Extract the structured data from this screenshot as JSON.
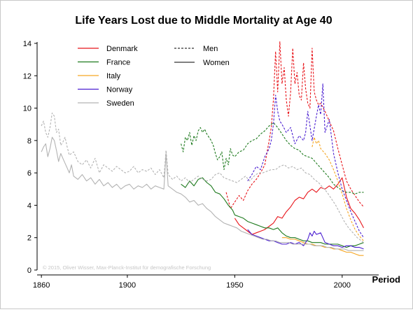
{
  "chart_data": {
    "type": "line",
    "title": "Life Years Lost due to Middle Mortality at Age 40",
    "xlabel": "Period",
    "ylabel": "",
    "xlim": [
      1858,
      2017
    ],
    "ylim": [
      0,
      14
    ],
    "xticks": [
      1860,
      1900,
      1950,
      2000
    ],
    "yticks": [
      0,
      2,
      4,
      6,
      8,
      10,
      12,
      14
    ],
    "grid": false,
    "legend": "top-left",
    "legend_entries": [
      "Denmark",
      "France",
      "Italy",
      "Norway",
      "Sweden"
    ],
    "linestyle_legend": [
      {
        "label": "Men",
        "style": "dashed"
      },
      {
        "label": "Women",
        "style": "solid"
      }
    ],
    "credit": "© 2015, Oliver Wisser, Max-Planck-Institut für demografische Forschung",
    "series": [
      {
        "name": "Denmark",
        "sex": "Men",
        "color": "#e8151b",
        "x": [
          1946,
          1948,
          1950,
          1952,
          1954,
          1956,
          1958,
          1960,
          1962,
          1964,
          1966,
          1967,
          1968,
          1969,
          1970,
          1971,
          1972,
          1973,
          1974,
          1975,
          1976,
          1977,
          1978,
          1979,
          1980,
          1981,
          1982,
          1983,
          1984,
          1985,
          1986,
          1987,
          1988,
          1989,
          1990,
          1992,
          1994,
          1996,
          1998,
          2000,
          2002,
          2004,
          2006,
          2008,
          2010
        ],
        "y": [
          4.8,
          3.8,
          4.2,
          4.6,
          4.3,
          4.9,
          5.3,
          5.6,
          6.0,
          6.5,
          8.0,
          8.8,
          10.5,
          13.5,
          11.0,
          14.1,
          11.5,
          12.5,
          10.5,
          9.5,
          11.0,
          13.7,
          11.5,
          12.2,
          10.8,
          10.5,
          12.8,
          11.2,
          10.3,
          10.0,
          13.7,
          11.0,
          10.5,
          10.2,
          10.3,
          9.8,
          9.2,
          8.6,
          7.5,
          6.5,
          5.5,
          5.0,
          4.6,
          4.2,
          3.9
        ]
      },
      {
        "name": "Denmark",
        "sex": "Women",
        "color": "#e8151b",
        "x": [
          1950,
          1952,
          1954,
          1956,
          1958,
          1960,
          1962,
          1964,
          1966,
          1968,
          1970,
          1972,
          1974,
          1976,
          1978,
          1980,
          1982,
          1984,
          1986,
          1988,
          1990,
          1992,
          1994,
          1996,
          1998,
          2000,
          2002,
          2004,
          2006,
          2008,
          2010
        ],
        "y": [
          3.2,
          2.8,
          2.6,
          2.4,
          2.2,
          2.3,
          2.4,
          2.5,
          2.7,
          2.9,
          3.3,
          3.2,
          3.6,
          3.9,
          4.3,
          4.5,
          4.4,
          4.8,
          5.0,
          4.8,
          5.1,
          5.0,
          5.2,
          5.0,
          5.3,
          5.7,
          4.5,
          3.8,
          3.5,
          3.1,
          2.6
        ]
      },
      {
        "name": "France",
        "sex": "Men",
        "color": "#1e7a1e",
        "x": [
          1925,
          1926,
          1927,
          1928,
          1929,
          1930,
          1931,
          1932,
          1933,
          1934,
          1935,
          1936,
          1937,
          1938,
          1939,
          1940,
          1941,
          1942,
          1943,
          1944,
          1945,
          1946,
          1947,
          1948,
          1949,
          1950,
          1952,
          1954,
          1956,
          1958,
          1960,
          1962,
          1964,
          1966,
          1968,
          1970,
          1972,
          1974,
          1976,
          1978,
          1980,
          1982,
          1984,
          1986,
          1988,
          1990,
          1992,
          1994,
          1996,
          1998,
          2000,
          2002,
          2004,
          2006,
          2008,
          2010
        ],
        "y": [
          7.8,
          7.3,
          8.2,
          8.0,
          8.5,
          7.7,
          8.3,
          8.0,
          8.6,
          8.8,
          8.5,
          8.7,
          8.4,
          8.2,
          8.0,
          7.7,
          7.2,
          6.8,
          7.0,
          7.3,
          6.2,
          6.9,
          6.5,
          7.5,
          7.1,
          7.0,
          7.3,
          7.4,
          7.8,
          8.0,
          8.1,
          8.4,
          8.6,
          8.9,
          9.1,
          8.8,
          8.4,
          8.0,
          7.7,
          7.5,
          7.4,
          7.1,
          7.0,
          6.9,
          6.6,
          6.3,
          6.0,
          5.7,
          5.3,
          5.1,
          4.9,
          4.8,
          4.8,
          4.7,
          4.8,
          4.8
        ]
      },
      {
        "name": "France",
        "sex": "Women",
        "color": "#1e7a1e",
        "x": [
          1925,
          1927,
          1929,
          1931,
          1933,
          1935,
          1937,
          1939,
          1941,
          1943,
          1945,
          1947,
          1949,
          1950,
          1952,
          1954,
          1956,
          1958,
          1960,
          1962,
          1964,
          1966,
          1968,
          1970,
          1972,
          1974,
          1976,
          1978,
          1980,
          1982,
          1984,
          1986,
          1988,
          1990,
          1992,
          1994,
          1996,
          1998,
          2000,
          2002,
          2004,
          2006,
          2008,
          2010
        ],
        "y": [
          5.3,
          5.1,
          5.5,
          5.2,
          5.6,
          5.7,
          5.4,
          5.2,
          4.8,
          4.7,
          4.4,
          4.0,
          3.7,
          3.4,
          3.3,
          3.2,
          3.0,
          2.9,
          2.8,
          2.7,
          2.6,
          2.6,
          2.5,
          2.6,
          2.3,
          2.1,
          2.0,
          2.0,
          1.9,
          1.8,
          1.8,
          1.7,
          1.7,
          1.7,
          1.6,
          1.6,
          1.6,
          1.6,
          1.5,
          1.4,
          1.5,
          1.5,
          1.6,
          1.7
        ]
      },
      {
        "name": "Italy",
        "sex": "Men",
        "color": "#f5a623",
        "x": [
          1986,
          1987,
          1988,
          1989,
          1990,
          1992,
          1994,
          1996,
          1998,
          2000,
          2002,
          2004,
          2006,
          2008,
          2010
        ],
        "y": [
          7.6,
          8.2,
          7.8,
          8.0,
          7.5,
          7.2,
          6.8,
          6.2,
          5.5,
          4.7,
          3.8,
          3.1,
          2.5,
          2.1,
          1.8
        ]
      },
      {
        "name": "Italy",
        "sex": "Women",
        "color": "#f5a623",
        "x": [
          1972,
          1974,
          1976,
          1978,
          1980,
          1982,
          1984,
          1986,
          1988,
          1990,
          1992,
          1994,
          1996,
          1998,
          2000,
          2002,
          2004,
          2006,
          2008,
          2010
        ],
        "y": [
          2.0,
          2.0,
          1.9,
          1.9,
          1.8,
          1.7,
          1.6,
          1.6,
          1.5,
          1.5,
          1.4,
          1.4,
          1.3,
          1.3,
          1.2,
          1.1,
          1.1,
          1.0,
          0.9,
          0.9
        ]
      },
      {
        "name": "Norway",
        "sex": "Men",
        "color": "#4b1fd1",
        "x": [
          1956,
          1958,
          1960,
          1962,
          1964,
          1966,
          1967,
          1968,
          1969,
          1970,
          1971,
          1972,
          1974,
          1976,
          1978,
          1980,
          1982,
          1983,
          1984,
          1986,
          1988,
          1989,
          1990,
          1991,
          1992,
          1994,
          1996,
          1998,
          2000,
          2002,
          2004,
          2006,
          2008,
          2010
        ],
        "y": [
          5.5,
          5.9,
          6.4,
          6.2,
          7.0,
          7.5,
          8.0,
          9.0,
          10.8,
          9.8,
          9.2,
          9.0,
          8.5,
          8.8,
          7.8,
          8.3,
          8.0,
          8.5,
          9.8,
          8.0,
          9.5,
          10.2,
          9.6,
          11.5,
          8.5,
          9.3,
          7.2,
          6.0,
          5.0,
          4.3,
          3.6,
          3.0,
          2.4,
          2.0
        ]
      },
      {
        "name": "Norway",
        "sex": "Women",
        "color": "#4b1fd1",
        "x": [
          1956,
          1958,
          1960,
          1962,
          1964,
          1966,
          1968,
          1970,
          1972,
          1974,
          1976,
          1978,
          1980,
          1982,
          1984,
          1985,
          1986,
          1987,
          1988,
          1990,
          1992,
          1994,
          1996,
          1998,
          2000,
          2002,
          2004,
          2006,
          2008,
          2010
        ],
        "y": [
          2.5,
          2.2,
          2.1,
          2.0,
          1.9,
          1.8,
          1.8,
          1.7,
          1.6,
          1.6,
          1.7,
          1.6,
          1.7,
          1.5,
          1.9,
          2.3,
          2.1,
          2.4,
          2.2,
          2.3,
          1.7,
          1.6,
          1.5,
          1.5,
          1.4,
          1.5,
          1.5,
          1.4,
          1.4,
          1.3
        ]
      },
      {
        "name": "Sweden",
        "sex": "Men",
        "color": "#b3b3b3",
        "x": [
          1860,
          1861,
          1862,
          1863,
          1864,
          1865,
          1866,
          1867,
          1868,
          1869,
          1870,
          1871,
          1872,
          1873,
          1875,
          1877,
          1879,
          1881,
          1883,
          1885,
          1887,
          1889,
          1891,
          1893,
          1895,
          1897,
          1899,
          1901,
          1903,
          1905,
          1907,
          1909,
          1911,
          1913,
          1915,
          1917,
          1918,
          1919,
          1921,
          1923,
          1925,
          1927,
          1929,
          1931,
          1933,
          1935,
          1937,
          1939,
          1941,
          1943,
          1945,
          1947,
          1949,
          1951,
          1953,
          1955,
          1957,
          1959,
          1961,
          1963,
          1965,
          1967,
          1969,
          1971,
          1973,
          1975,
          1977,
          1979,
          1981,
          1983,
          1985,
          1987,
          1989,
          1991,
          1993,
          1995,
          1997,
          1999,
          2001,
          2003,
          2005,
          2007,
          2009,
          2010
        ],
        "y": [
          8.9,
          9.2,
          8.5,
          8.2,
          8.8,
          9.7,
          9.5,
          8.5,
          8.7,
          7.7,
          7.9,
          8.2,
          7.6,
          7.1,
          7.3,
          6.7,
          6.5,
          6.8,
          6.3,
          6.9,
          6.0,
          6.5,
          6.3,
          6.1,
          6.4,
          6.2,
          6.0,
          6.1,
          6.4,
          6.0,
          6.2,
          6.1,
          6.3,
          5.9,
          6.2,
          5.7,
          7.4,
          5.9,
          5.6,
          5.8,
          5.5,
          5.7,
          5.4,
          5.6,
          5.8,
          5.6,
          5.5,
          5.6,
          5.9,
          6.0,
          5.7,
          5.6,
          5.5,
          5.4,
          5.6,
          5.8,
          5.5,
          5.8,
          6.0,
          6.0,
          6.1,
          6.2,
          6.2,
          6.4,
          6.5,
          6.3,
          6.4,
          6.2,
          6.3,
          6.0,
          5.9,
          5.6,
          5.4,
          5.1,
          4.8,
          4.4,
          4.0,
          3.5,
          3.0,
          2.6,
          2.3,
          2.0,
          1.8,
          1.7
        ]
      },
      {
        "name": "Sweden",
        "sex": "Women",
        "color": "#b3b3b3",
        "x": [
          1860,
          1861,
          1862,
          1863,
          1864,
          1865,
          1866,
          1867,
          1868,
          1869,
          1870,
          1871,
          1872,
          1873,
          1874,
          1875,
          1877,
          1879,
          1881,
          1883,
          1885,
          1887,
          1889,
          1891,
          1893,
          1895,
          1897,
          1899,
          1901,
          1903,
          1905,
          1907,
          1909,
          1911,
          1913,
          1915,
          1917,
          1918,
          1919,
          1921,
          1923,
          1925,
          1927,
          1929,
          1931,
          1933,
          1935,
          1937,
          1939,
          1941,
          1943,
          1945,
          1947,
          1949,
          1951,
          1953,
          1955,
          1957,
          1959,
          1961,
          1963,
          1965,
          1967,
          1969,
          1971,
          1973,
          1975,
          1977,
          1979,
          1981,
          1983,
          1985,
          1987,
          1989,
          1991,
          1993,
          1995,
          1997,
          1999,
          2001,
          2003,
          2005,
          2007,
          2009,
          2010
        ],
        "y": [
          7.3,
          7.6,
          7.8,
          7.0,
          7.5,
          8.2,
          8.0,
          7.4,
          6.7,
          7.2,
          6.9,
          6.6,
          6.3,
          6.0,
          6.5,
          5.8,
          5.6,
          5.9,
          5.5,
          5.7,
          5.3,
          5.6,
          5.2,
          5.4,
          5.1,
          5.3,
          5.0,
          5.2,
          5.3,
          5.0,
          5.2,
          5.1,
          5.3,
          5.0,
          5.2,
          5.1,
          5.0,
          7.2,
          5.2,
          5.0,
          4.8,
          4.7,
          4.5,
          4.2,
          4.3,
          4.0,
          4.1,
          3.8,
          3.6,
          3.3,
          3.1,
          2.9,
          2.8,
          2.7,
          2.6,
          2.4,
          2.3,
          2.2,
          2.1,
          2.0,
          1.9,
          1.9,
          1.8,
          1.8,
          1.7,
          1.7,
          1.7,
          1.6,
          1.6,
          1.6,
          1.6,
          1.6,
          1.5,
          1.5,
          1.5,
          1.4,
          1.4,
          1.3,
          1.3,
          1.3,
          1.2,
          1.2,
          1.2,
          1.2,
          1.2
        ]
      }
    ]
  }
}
